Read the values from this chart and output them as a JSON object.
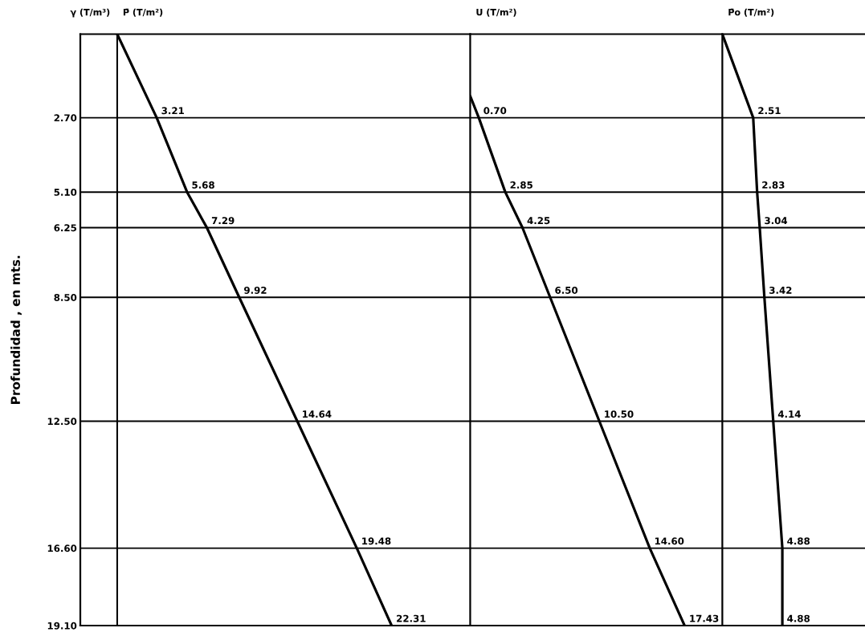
{
  "chart_data": [
    {
      "type": "line",
      "orientation": "horizontal",
      "title": "P̄ (T/m²)",
      "ylabel": "Profundidad , en mts.",
      "annotations": [
        "γ (T/m³)"
      ],
      "series": [
        {
          "color": "#000000",
          "x": [
            0,
            2.7,
            5.1,
            6.25,
            8.5,
            12.5,
            16.6,
            19.1
          ],
          "values": [
            0,
            3.21,
            5.68,
            7.29,
            9.92,
            14.64,
            19.48,
            22.31
          ],
          "value_labels": [
            null,
            "3.21",
            "5.68",
            "7.29",
            "9.92",
            "14.64",
            "19.48",
            "22.31"
          ]
        }
      ],
      "xlim": [
        -3.0,
        28.7
      ],
      "ylim": [
        19.1,
        0
      ],
      "yticks": [
        {
          "value": 2.7,
          "label": "2.70"
        },
        {
          "value": 5.1,
          "label": "5.10"
        },
        {
          "value": 6.25,
          "label": "6.25"
        },
        {
          "value": 8.5,
          "label": "8.50"
        },
        {
          "value": 12.5,
          "label": "12.50"
        },
        {
          "value": 16.6,
          "label": "16.60"
        },
        {
          "value": 19.1,
          "label": "19.10"
        }
      ],
      "grid": "y",
      "tick_labels": "y",
      "ref_lines": [
        {
          "axis": "x",
          "value": 0,
          "color": "#000000"
        }
      ]
    },
    {
      "type": "line",
      "orientation": "horizontal",
      "title": "U (T/m²)",
      "series": [
        {
          "color": "#000000",
          "x": [
            2.0,
            2.7,
            5.1,
            6.25,
            8.5,
            12.5,
            16.6,
            19.1
          ],
          "values": [
            0,
            0.7,
            2.85,
            4.25,
            6.5,
            10.5,
            14.6,
            17.43
          ],
          "value_labels": [
            null,
            "0.70",
            "2.85",
            "4.25",
            "6.50",
            "10.50",
            "14.60",
            "17.43"
          ]
        }
      ],
      "xlim": [
        0,
        20.5
      ],
      "ylim": [
        19.1,
        0
      ],
      "yticks": [
        {
          "value": 2.7,
          "label": null
        },
        {
          "value": 5.1,
          "label": null
        },
        {
          "value": 6.25,
          "label": null
        },
        {
          "value": 8.5,
          "label": null
        },
        {
          "value": 12.5,
          "label": null
        },
        {
          "value": 16.6,
          "label": null
        },
        {
          "value": 19.1,
          "label": null
        }
      ],
      "grid": "y",
      "tick_labels": false
    },
    {
      "type": "line",
      "orientation": "horizontal",
      "title": "P̄o (T/m²)",
      "series": [
        {
          "color": "#000000",
          "x": [
            0,
            2.7,
            5.1,
            6.25,
            8.5,
            12.5,
            16.6,
            19.1
          ],
          "values": [
            0,
            2.51,
            2.83,
            3.04,
            3.42,
            4.14,
            4.88,
            4.88
          ],
          "value_labels": [
            null,
            "2.51",
            "2.83",
            "3.04",
            "3.42",
            "4.14",
            "4.88",
            "4.88"
          ]
        }
      ],
      "xlim": [
        0,
        11.6
      ],
      "ylim": [
        19.1,
        0
      ],
      "yticks": [
        {
          "value": 2.7,
          "label": null
        },
        {
          "value": 5.1,
          "label": null
        },
        {
          "value": 6.25,
          "label": null
        },
        {
          "value": 8.5,
          "label": null
        },
        {
          "value": 12.5,
          "label": null
        },
        {
          "value": 16.6,
          "label": null
        },
        {
          "value": 19.1,
          "label": null
        }
      ],
      "grid": "y",
      "tick_labels": false
    }
  ]
}
